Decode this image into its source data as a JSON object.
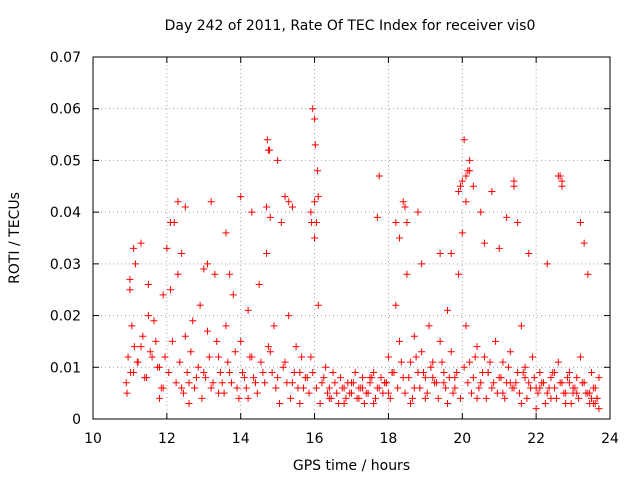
{
  "chart_data": {
    "type": "scatter",
    "title": "Day 242 of 2011, Rate Of TEC Index for receiver vis0",
    "xlabel": "GPS time / hours",
    "ylabel": "ROTI / TECUs",
    "xlim": [
      10,
      24
    ],
    "ylim": [
      0,
      0.07
    ],
    "xticks": [
      "10",
      "12",
      "14",
      "16",
      "18",
      "20",
      "22",
      "24"
    ],
    "yticks": [
      "0",
      "0.01",
      "0.02",
      "0.03",
      "0.04",
      "0.05",
      "0.06",
      "0.07"
    ],
    "grid": true,
    "marker": "plus",
    "color": "#ff0000",
    "series": [
      {
        "x": [
          10.9,
          10.95,
          11.0,
          11.05,
          11.1,
          11.15,
          11.2,
          11.3,
          11.4,
          11.5,
          11.6,
          11.7,
          11.8,
          11.9,
          12.0,
          12.1,
          12.2,
          12.3,
          12.4,
          12.5,
          12.6,
          12.7,
          12.8,
          12.9,
          13.0,
          13.1,
          13.2,
          13.3,
          13.4,
          13.5,
          13.6,
          13.7,
          13.8,
          13.9,
          14.0,
          14.1,
          14.2,
          14.3,
          14.4,
          14.5,
          14.6,
          14.7,
          14.8,
          14.9,
          15.0,
          15.1,
          15.2,
          15.3,
          15.4,
          15.5,
          15.6,
          15.7,
          15.8,
          15.9,
          16.0,
          16.1,
          16.2,
          16.3,
          16.4,
          16.5,
          16.6,
          16.7,
          16.8,
          16.9,
          17.0,
          17.1,
          17.2,
          17.3,
          17.4,
          17.5,
          17.6,
          17.7,
          17.8,
          17.9,
          18.0,
          18.1,
          18.2,
          18.3,
          18.4,
          18.5,
          18.6,
          18.7,
          18.8,
          18.9,
          19.0,
          19.1,
          19.2,
          19.3,
          19.4,
          19.5,
          19.6,
          19.7,
          19.8,
          19.9,
          20.0,
          20.1,
          20.2,
          20.3,
          20.4,
          20.5,
          20.6,
          20.7,
          20.8,
          20.9,
          21.0,
          21.1,
          21.2,
          21.3,
          21.4,
          21.5,
          21.6,
          21.7,
          21.8,
          21.9,
          22.0,
          22.1,
          22.2,
          22.3,
          22.4,
          22.5,
          22.6,
          22.7,
          22.8,
          22.9,
          23.0,
          23.1,
          23.2,
          23.3,
          23.4,
          23.5,
          23.6,
          23.7,
          10.92,
          11.02,
          11.12,
          11.22,
          11.35,
          11.45,
          11.55,
          11.65,
          11.75,
          11.85,
          11.95,
          12.05,
          12.15,
          12.25,
          12.35,
          12.45,
          12.55,
          12.65,
          12.75,
          12.85,
          12.95,
          13.05,
          13.15,
          13.25,
          13.35,
          13.45,
          13.55,
          13.65,
          13.75,
          13.85,
          13.95,
          14.05,
          14.15,
          14.25,
          14.35,
          14.45,
          14.55,
          14.65,
          14.75,
          14.85,
          14.95,
          15.05,
          15.15,
          15.25,
          15.35,
          15.45,
          15.55,
          15.65,
          15.75,
          15.85,
          15.95,
          16.05,
          16.15,
          16.25,
          16.35,
          16.45,
          16.55,
          16.65,
          16.75,
          16.85,
          16.95,
          17.05,
          17.15,
          17.25,
          17.35,
          17.45,
          17.55,
          17.65,
          17.75,
          17.85,
          17.95,
          18.05,
          18.15,
          18.25,
          18.35,
          18.45,
          18.55,
          18.65,
          18.75,
          18.85,
          18.95,
          19.05,
          19.15,
          19.25,
          19.35,
          19.45,
          19.55,
          19.65,
          19.75,
          19.85,
          19.95,
          20.05,
          20.15,
          20.25,
          20.35,
          20.45,
          20.55,
          20.65,
          20.75,
          20.85,
          20.95,
          21.05,
          21.15,
          21.25,
          21.35,
          21.45,
          21.55,
          21.65,
          21.75,
          21.85,
          21.95,
          22.05,
          22.15,
          22.25,
          22.35,
          22.45,
          22.55,
          22.65,
          22.75,
          22.85,
          22.95,
          23.05,
          23.15,
          23.25,
          23.35,
          23.45,
          23.55,
          23.65,
          11.0,
          11.1,
          11.3,
          11.5,
          11.9,
          12.1,
          12.3,
          12.5,
          13.0,
          13.2,
          13.6,
          14.0,
          14.3,
          14.7,
          14.8,
          15.2,
          15.4,
          15.9,
          16.0,
          16.05,
          16.1,
          17.7,
          18.2,
          18.4,
          18.5,
          18.8,
          19.4,
          19.9,
          20.0,
          20.1,
          20.2,
          20.3,
          20.5,
          20.8,
          21.2,
          21.4,
          21.5,
          22.6,
          22.7,
          23.2,
          23.3,
          15.95,
          16.0,
          16.02,
          14.72,
          14.78,
          15.0,
          15.3,
          20.05,
          20.1,
          20.15,
          20.2,
          19.95,
          21.4,
          22.65,
          22.7,
          17.75,
          18.45,
          16.08,
          15.92,
          14.75,
          12.4,
          13.1,
          13.7,
          18.3,
          18.9,
          19.7,
          20.6,
          21.0,
          21.8,
          22.3,
          23.4,
          11.8,
          12.6,
          13.4,
          14.2,
          15.6,
          16.4,
          16.8,
          17.2,
          17.6,
          18.0,
          18.6,
          19.0,
          19.6,
          20.4,
          21.1,
          21.6,
          22.0,
          22.4,
          22.8,
          23.0,
          23.5,
          23.6,
          23.7,
          23.65,
          23.55,
          23.45,
          17.0,
          17.3,
          17.5,
          17.9,
          18.1,
          18.7,
          19.2,
          19.5,
          19.8,
          20.7,
          21.3,
          21.7,
          22.1,
          22.5,
          22.9,
          23.1
        ],
        "y": [
          0.007,
          0.012,
          0.025,
          0.018,
          0.009,
          0.03,
          0.011,
          0.014,
          0.008,
          0.02,
          0.012,
          0.015,
          0.01,
          0.006,
          0.033,
          0.025,
          0.038,
          0.028,
          0.006,
          0.016,
          0.007,
          0.019,
          0.008,
          0.022,
          0.009,
          0.017,
          0.006,
          0.028,
          0.012,
          0.007,
          0.018,
          0.009,
          0.024,
          0.006,
          0.015,
          0.008,
          0.021,
          0.012,
          0.007,
          0.026,
          0.009,
          0.032,
          0.013,
          0.018,
          0.008,
          0.038,
          0.011,
          0.02,
          0.007,
          0.014,
          0.009,
          0.006,
          0.008,
          0.012,
          0.035,
          0.022,
          0.007,
          0.01,
          0.006,
          0.009,
          0.005,
          0.008,
          0.006,
          0.007,
          0.005,
          0.009,
          0.006,
          0.008,
          0.005,
          0.007,
          0.009,
          0.006,
          0.008,
          0.007,
          0.012,
          0.009,
          0.022,
          0.015,
          0.008,
          0.028,
          0.011,
          0.016,
          0.009,
          0.013,
          0.008,
          0.018,
          0.011,
          0.007,
          0.015,
          0.009,
          0.021,
          0.013,
          0.008,
          0.028,
          0.036,
          0.018,
          0.011,
          0.008,
          0.014,
          0.007,
          0.012,
          0.009,
          0.006,
          0.015,
          0.008,
          0.011,
          0.007,
          0.013,
          0.006,
          0.009,
          0.018,
          0.01,
          0.007,
          0.012,
          0.006,
          0.009,
          0.007,
          0.005,
          0.008,
          0.006,
          0.011,
          0.007,
          0.005,
          0.009,
          0.006,
          0.008,
          0.012,
          0.007,
          0.005,
          0.009,
          0.006,
          0.008,
          0.005,
          0.009,
          0.014,
          0.011,
          0.016,
          0.008,
          0.013,
          0.019,
          0.01,
          0.006,
          0.012,
          0.009,
          0.015,
          0.007,
          0.011,
          0.005,
          0.009,
          0.013,
          0.006,
          0.01,
          0.004,
          0.008,
          0.012,
          0.007,
          0.015,
          0.009,
          0.005,
          0.011,
          0.007,
          0.013,
          0.004,
          0.009,
          0.006,
          0.012,
          0.008,
          0.005,
          0.011,
          0.007,
          0.014,
          0.009,
          0.006,
          0.003,
          0.01,
          0.007,
          0.004,
          0.009,
          0.006,
          0.012,
          0.008,
          0.005,
          0.009,
          0.006,
          0.003,
          0.008,
          0.005,
          0.004,
          0.007,
          0.003,
          0.006,
          0.004,
          0.005,
          0.007,
          0.004,
          0.006,
          0.003,
          0.005,
          0.008,
          0.004,
          0.006,
          0.005,
          0.007,
          0.004,
          0.009,
          0.006,
          0.011,
          0.005,
          0.008,
          0.004,
          0.012,
          0.006,
          0.009,
          0.005,
          0.01,
          0.007,
          0.004,
          0.011,
          0.006,
          0.008,
          0.005,
          0.009,
          0.004,
          0.01,
          0.007,
          0.005,
          0.012,
          0.006,
          0.009,
          0.004,
          0.011,
          0.007,
          0.005,
          0.008,
          0.004,
          0.01,
          0.006,
          0.007,
          0.005,
          0.009,
          0.004,
          0.006,
          0.008,
          0.005,
          0.007,
          0.003,
          0.006,
          0.009,
          0.004,
          0.007,
          0.005,
          0.008,
          0.003,
          0.006,
          0.004,
          0.007,
          0.005,
          0.003,
          0.006,
          0.004,
          0.027,
          0.033,
          0.034,
          0.026,
          0.024,
          0.038,
          0.042,
          0.041,
          0.029,
          0.042,
          0.036,
          0.043,
          0.04,
          0.041,
          0.039,
          0.043,
          0.041,
          0.04,
          0.042,
          0.038,
          0.043,
          0.039,
          0.038,
          0.042,
          0.038,
          0.04,
          0.032,
          0.044,
          0.046,
          0.042,
          0.048,
          0.045,
          0.04,
          0.044,
          0.039,
          0.045,
          0.038,
          0.047,
          0.045,
          0.038,
          0.034,
          0.06,
          0.058,
          0.053,
          0.054,
          0.052,
          0.05,
          0.042,
          0.054,
          0.047,
          0.048,
          0.05,
          0.045,
          0.046,
          0.047,
          0.046,
          0.047,
          0.041,
          0.048,
          0.038,
          0.052,
          0.032,
          0.03,
          0.028,
          0.035,
          0.03,
          0.032,
          0.034,
          0.033,
          0.032,
          0.03,
          0.028,
          0.004,
          0.003,
          0.005,
          0.004,
          0.003,
          0.004,
          0.003,
          0.004,
          0.003,
          0.005,
          0.003,
          0.004,
          0.003,
          0.004,
          0.005,
          0.003,
          0.002,
          0.004,
          0.003,
          0.005,
          0.004,
          0.003,
          0.002,
          0.004,
          0.003,
          0.005,
          0.007,
          0.006,
          0.008,
          0.007,
          0.009,
          0.006,
          0.008,
          0.007,
          0.006,
          0.009,
          0.007,
          0.008,
          0.006,
          0.009,
          0.007,
          0.005
        ]
      }
    ]
  }
}
